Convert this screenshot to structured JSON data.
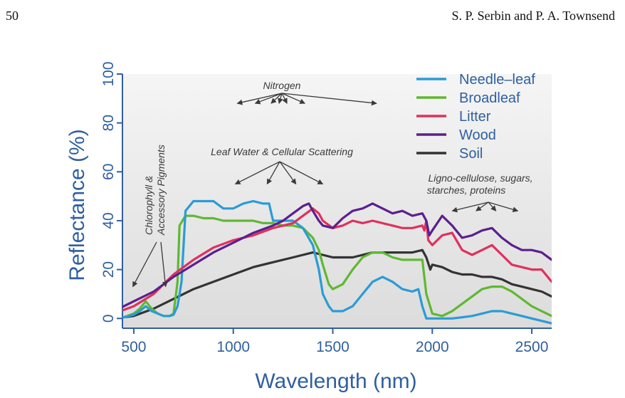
{
  "page": {
    "number": "50",
    "running_head": "S. P. Serbin and P. A. Townsend"
  },
  "chart_data": {
    "type": "line",
    "title": "",
    "xlabel": "Wavelength (nm)",
    "ylabel": "Reflectance (%)",
    "xlim": [
      400,
      2600
    ],
    "ylim": [
      0,
      100
    ],
    "xticks": [
      "500",
      "1000",
      "1500",
      "2000",
      "2500"
    ],
    "yticks": [
      "0",
      "20",
      "40",
      "60",
      "80",
      "100"
    ],
    "grid": false,
    "legend_position": "top-right",
    "series": [
      {
        "name": "Needle–leaf",
        "color": "#2a9bd6",
        "x": [
          400,
          450,
          500,
          530,
          560,
          590,
          620,
          650,
          680,
          700,
          720,
          740,
          760,
          800,
          850,
          900,
          950,
          1000,
          1050,
          1100,
          1150,
          1180,
          1200,
          1250,
          1300,
          1350,
          1400,
          1430,
          1450,
          1480,
          1500,
          1550,
          1600,
          1650,
          1700,
          1750,
          1800,
          1850,
          1900,
          1930,
          1950,
          1970,
          2000,
          2050,
          2100,
          2150,
          2200,
          2250,
          2300,
          2350,
          2400,
          2450,
          2500,
          2550,
          2600
        ],
        "y": [
          0,
          0.5,
          1.5,
          3,
          5,
          3,
          2,
          1,
          1,
          1.5,
          5,
          15,
          44,
          48,
          48,
          48,
          45,
          45,
          47,
          48,
          47,
          47,
          40,
          40,
          40,
          37,
          30,
          20,
          10,
          5,
          3,
          3,
          5,
          10,
          15,
          17,
          15,
          12,
          11,
          12,
          5,
          0,
          0,
          0,
          0,
          0.5,
          1,
          2,
          3,
          3,
          2,
          1,
          0,
          -1,
          -2
        ]
      },
      {
        "name": "Broadleaf",
        "color": "#5fb832",
        "x": [
          400,
          450,
          500,
          530,
          560,
          590,
          620,
          650,
          680,
          700,
          720,
          730,
          760,
          800,
          850,
          900,
          950,
          1000,
          1050,
          1100,
          1150,
          1200,
          1250,
          1300,
          1350,
          1400,
          1430,
          1450,
          1480,
          1500,
          1550,
          1600,
          1650,
          1700,
          1750,
          1800,
          1850,
          1900,
          1950,
          1970,
          2000,
          2050,
          2100,
          2150,
          2200,
          2250,
          2300,
          2350,
          2400,
          2450,
          2500,
          2550,
          2600
        ],
        "y": [
          0,
          0.5,
          2,
          4,
          7,
          4,
          2,
          1,
          1,
          2,
          15,
          38,
          42,
          42,
          41,
          41,
          40,
          40,
          40,
          40,
          39,
          39,
          38,
          38,
          37,
          33,
          28,
          22,
          14,
          12,
          14,
          20,
          25,
          27,
          27,
          25,
          24,
          24,
          24,
          10,
          2,
          1,
          3,
          6,
          9,
          12,
          13,
          13,
          11,
          8,
          5,
          3,
          1
        ]
      },
      {
        "name": "Litter",
        "color": "#e0305e",
        "x": [
          400,
          500,
          600,
          700,
          800,
          900,
          1000,
          1100,
          1200,
          1300,
          1350,
          1400,
          1430,
          1450,
          1500,
          1550,
          1600,
          1650,
          1700,
          1750,
          1800,
          1850,
          1900,
          1950,
          1960,
          1970,
          1980,
          2000,
          2050,
          2100,
          2150,
          2200,
          2250,
          2300,
          2350,
          2400,
          2450,
          2500,
          2550,
          2580,
          2600
        ],
        "y": [
          2,
          5,
          10,
          18,
          24,
          29,
          32,
          34,
          37,
          39,
          42,
          45,
          43,
          40,
          37,
          38,
          40,
          39,
          40,
          39,
          38,
          37,
          37,
          38,
          36,
          40,
          32,
          30,
          34,
          35,
          28,
          26,
          28,
          30,
          26,
          22,
          21,
          20,
          20,
          17,
          15
        ]
      },
      {
        "name": "Wood",
        "color": "#5b1f8e",
        "x": [
          400,
          500,
          600,
          700,
          800,
          900,
          1000,
          1100,
          1200,
          1250,
          1300,
          1350,
          1380,
          1400,
          1430,
          1450,
          1500,
          1550,
          1600,
          1650,
          1700,
          1750,
          1800,
          1850,
          1900,
          1950,
          1970,
          1985,
          2000,
          2050,
          2100,
          2150,
          2200,
          2250,
          2300,
          2350,
          2400,
          2450,
          2500,
          2550,
          2600
        ],
        "y": [
          3,
          7,
          11,
          17,
          22,
          27,
          31,
          35,
          38,
          40,
          43,
          46,
          47,
          44,
          40,
          38,
          37,
          41,
          44,
          45,
          47,
          45,
          43,
          44,
          42,
          43,
          40,
          34,
          36,
          42,
          38,
          33,
          34,
          36,
          37,
          33,
          30,
          28,
          28,
          27,
          24
        ]
      },
      {
        "name": "Soil",
        "color": "#333333",
        "x": [
          400,
          500,
          600,
          700,
          800,
          900,
          1000,
          1100,
          1200,
          1300,
          1350,
          1400,
          1450,
          1500,
          1550,
          1600,
          1650,
          1700,
          1750,
          1800,
          1850,
          1900,
          1950,
          1970,
          1990,
          2000,
          2050,
          2100,
          2150,
          2200,
          2250,
          2300,
          2350,
          2400,
          2450,
          2500,
          2550,
          2600
        ],
        "y": [
          0,
          1,
          4,
          8,
          12,
          15,
          18,
          21,
          23,
          25,
          26,
          27,
          26,
          25,
          25,
          25,
          26,
          27,
          27,
          27,
          27,
          27,
          28,
          25,
          20,
          22,
          21,
          19,
          18,
          18,
          17,
          17,
          16,
          14,
          13,
          12,
          11,
          9
        ]
      }
    ],
    "annotations": [
      {
        "text": "Nitrogen",
        "targets_nm": [
          1020,
          1110,
          1190,
          1230,
          1270,
          1360,
          1720
        ],
        "target_y": 88
      },
      {
        "text": "Leaf Water & Cellular Scattering",
        "targets_nm": [
          1010,
          1170,
          1315,
          1450
        ],
        "target_y": 55
      },
      {
        "text": "Chlorophyll & Accessory Pigments",
        "targets_nm": [
          495,
          660
        ],
        "target_y": 13
      },
      {
        "text": "Ligno-cellulose, sugars,",
        "text2": "starches, proteins",
        "targets_nm": [
          2100,
          2220,
          2320,
          2430
        ],
        "target_y": 44
      }
    ]
  }
}
